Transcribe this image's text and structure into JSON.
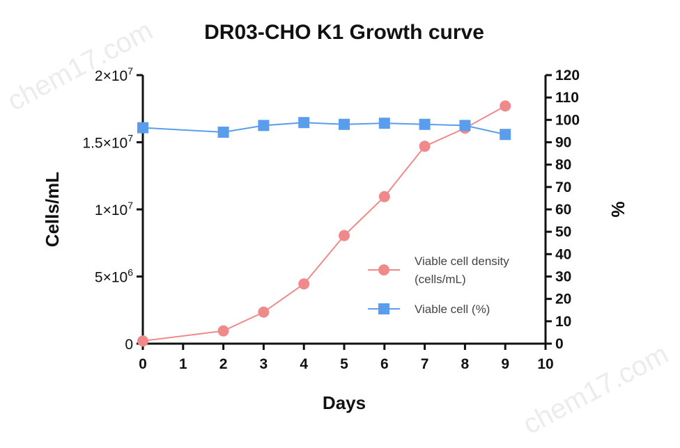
{
  "watermark": "chem17.com",
  "chart_data": {
    "type": "line",
    "title": "DR03-CHO K1 Growth curve",
    "xlabel": "Days",
    "ylabel": "Cells/mL",
    "ylabel_right": "%",
    "xlim": [
      0,
      10
    ],
    "ylim": [
      0,
      20000000
    ],
    "ylim_right": [
      0,
      120
    ],
    "x_ticks": [
      "0",
      "1",
      "2",
      "3",
      "4",
      "5",
      "6",
      "7",
      "8",
      "9",
      "10"
    ],
    "y_ticks": [
      {
        "value": 0,
        "base": "0",
        "exp": ""
      },
      {
        "value": 5000000,
        "base": "5×10",
        "exp": "6"
      },
      {
        "value": 10000000,
        "base": "1×10",
        "exp": "7"
      },
      {
        "value": 15000000,
        "base": "1.5×10",
        "exp": "7"
      },
      {
        "value": 20000000,
        "base": "2×10",
        "exp": "7"
      }
    ],
    "y_right_ticks": [
      "0",
      "10",
      "20",
      "30",
      "40",
      "50",
      "60",
      "70",
      "80",
      "90",
      "100",
      "110",
      "120"
    ],
    "grid": false,
    "legend_position": "right-center",
    "series": [
      {
        "name": "Viable cell density (cells/mL)",
        "name_lines": [
          "Viable cell density",
          "(cells/mL)"
        ],
        "axis": "left",
        "marker": "circle",
        "color": "#f08a8a",
        "x": [
          0,
          2,
          3,
          4,
          5,
          6,
          7,
          8,
          9
        ],
        "values": [
          200000,
          950000,
          2350000,
          4450000,
          8050000,
          10950000,
          14700000,
          16050000,
          17700000
        ]
      },
      {
        "name": "Viable cell (%)",
        "name_lines": [
          "Viable cell (%)"
        ],
        "axis": "right",
        "marker": "square",
        "color": "#5b9ded",
        "x": [
          0,
          2,
          3,
          4,
          5,
          6,
          7,
          8,
          9
        ],
        "values": [
          96.5,
          94.5,
          97.5,
          98.8,
          98.0,
          98.5,
          98.0,
          97.5,
          93.5
        ]
      }
    ]
  }
}
